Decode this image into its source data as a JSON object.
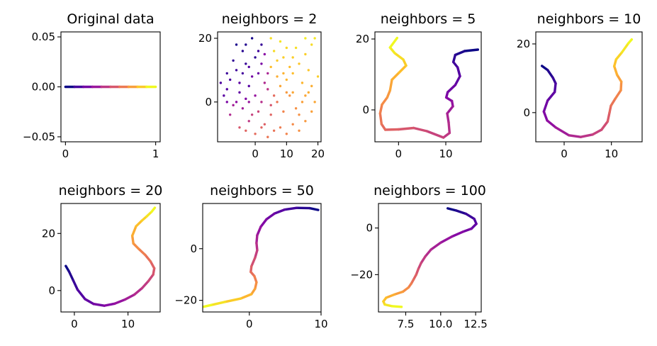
{
  "chart_data": [
    {
      "type": "line",
      "title": "Original data",
      "colormap": "plasma",
      "xlim": [
        -0.05,
        1.05
      ],
      "ylim": [
        -0.055,
        0.055
      ],
      "xticks": [
        0,
        1
      ],
      "xtick_labels": [
        "0",
        "1"
      ],
      "yticks": [
        -0.05,
        0,
        0.05
      ],
      "ytick_labels": [
        "−0.05",
        "0.00",
        "0.05"
      ],
      "x": [
        0,
        0.1,
        0.2,
        0.3,
        0.4,
        0.5,
        0.6,
        0.7,
        0.8,
        0.9,
        1.0
      ],
      "y": [
        0,
        0,
        0,
        0,
        0,
        0,
        0,
        0,
        0,
        0,
        0
      ]
    },
    {
      "type": "scatter",
      "title": "neighbors = 2",
      "colormap": "plasma",
      "xlim": [
        -12,
        21
      ],
      "ylim": [
        -12.5,
        22
      ],
      "xticks": [
        0,
        10,
        20
      ],
      "xtick_labels": [
        "0",
        "10",
        "20"
      ],
      "yticks": [
        0,
        20
      ],
      "ytick_labels": [
        "0",
        "20"
      ],
      "points": [
        [
          -4,
          16,
          0.05
        ],
        [
          -1,
          20,
          0.02
        ],
        [
          -6,
          10,
          0.1
        ],
        [
          -3,
          12,
          0.08
        ],
        [
          -8,
          7,
          0.12
        ],
        [
          -2,
          5,
          0.15
        ],
        [
          0,
          14,
          0.06
        ],
        [
          -5,
          3,
          0.18
        ],
        [
          -9,
          4,
          0.14
        ],
        [
          1,
          9,
          0.2
        ],
        [
          -7,
          13,
          0.07
        ],
        [
          -3,
          18,
          0.04
        ],
        [
          -10,
          2,
          0.16
        ],
        [
          -1,
          8,
          0.22
        ],
        [
          2,
          12,
          0.24
        ],
        [
          -6,
          0,
          0.3
        ],
        [
          -4,
          -2,
          0.35
        ],
        [
          0,
          2,
          0.32
        ],
        [
          -8,
          -4,
          0.4
        ],
        [
          -2,
          -6,
          0.45
        ],
        [
          1,
          -3,
          0.5
        ],
        [
          -5,
          -8,
          0.55
        ],
        [
          -3,
          -9,
          0.6
        ],
        [
          0,
          -10,
          0.62
        ],
        [
          3,
          -7,
          0.58
        ],
        [
          2,
          0,
          0.42
        ],
        [
          4,
          4,
          0.44
        ],
        [
          -9,
          9,
          0.09
        ],
        [
          -11,
          6,
          0.13
        ],
        [
          -2,
          0,
          0.33
        ],
        [
          5,
          -4,
          0.6
        ],
        [
          6,
          -9,
          0.65
        ],
        [
          4,
          -11,
          0.66
        ],
        [
          8,
          -8,
          0.68
        ],
        [
          10,
          -10,
          0.7
        ],
        [
          12,
          -7,
          0.72
        ],
        [
          14,
          -9,
          0.74
        ],
        [
          16,
          -6,
          0.76
        ],
        [
          18,
          -3,
          0.78
        ],
        [
          19,
          0,
          0.8
        ],
        [
          17,
          3,
          0.82
        ],
        [
          15,
          0,
          0.78
        ],
        [
          13,
          -2,
          0.74
        ],
        [
          11,
          2,
          0.75
        ],
        [
          9,
          -3,
          0.7
        ],
        [
          7,
          0,
          0.66
        ],
        [
          8,
          5,
          0.8
        ],
        [
          10,
          7,
          0.84
        ],
        [
          12,
          9,
          0.86
        ],
        [
          14,
          12,
          0.88
        ],
        [
          16,
          15,
          0.9
        ],
        [
          18,
          18,
          0.93
        ],
        [
          19,
          20,
          0.96
        ],
        [
          17,
          10,
          0.88
        ],
        [
          20,
          8,
          0.9
        ],
        [
          15,
          6,
          0.84
        ],
        [
          12,
          14,
          0.9
        ],
        [
          10,
          17,
          0.92
        ],
        [
          8,
          19,
          0.95
        ],
        [
          6,
          16,
          0.93
        ],
        [
          5,
          11,
          0.86
        ],
        [
          7,
          13,
          0.89
        ],
        [
          3,
          15,
          0.28
        ],
        [
          4,
          9,
          0.38
        ],
        [
          6,
          2,
          0.62
        ],
        [
          13,
          17,
          0.94
        ],
        [
          11,
          11,
          0.86
        ],
        [
          9,
          9,
          0.83
        ],
        [
          16,
          20,
          0.97
        ],
        [
          18,
          5,
          0.82
        ],
        [
          -7,
          -1,
          0.36
        ],
        [
          -5,
          6,
          0.17
        ],
        [
          -3,
          1,
          0.26
        ],
        [
          2,
          -8,
          0.6
        ],
        [
          -1,
          -4,
          0.48
        ],
        [
          3,
          6,
          0.4
        ],
        [
          1,
          16,
          0.1
        ],
        [
          -4,
          9,
          0.11
        ],
        [
          14,
          -4,
          0.74
        ],
        [
          10,
          3,
          0.76
        ],
        [
          -6,
          18,
          0.03
        ],
        [
          2,
          18,
          0.08
        ],
        [
          -2,
          11,
          0.14
        ],
        [
          5,
          -1,
          0.55
        ],
        [
          7,
          8,
          0.82
        ],
        [
          9,
          14,
          0.9
        ],
        [
          -9,
          0,
          0.25
        ],
        [
          12,
          3,
          0.8
        ],
        [
          16,
          2,
          0.8
        ],
        [
          5,
          20,
          0.94
        ]
      ]
    },
    {
      "type": "line",
      "title": "neighbors = 5",
      "colormap": "plasma",
      "xlim": [
        -5,
        17.5
      ],
      "ylim": [
        -9,
        22
      ],
      "xticks": [
        0,
        10
      ],
      "xtick_labels": [
        "0",
        "10"
      ],
      "yticks": [
        0,
        20
      ],
      "ytick_labels": [
        "0",
        "20"
      ],
      "x": [
        16.8,
        14,
        12,
        11.6,
        12.5,
        13,
        12,
        10.4,
        10.1,
        11.3,
        11.5,
        10.3,
        10.6,
        10.8,
        9.5,
        6,
        3.2,
        0,
        -2.8,
        -3.6,
        -3.9,
        -3.5,
        -2.4,
        -1.8,
        -1.4,
        0.1,
        1.6,
        1.0,
        -0.8,
        -1.8,
        -0.3
      ],
      "y": [
        17,
        16.6,
        15.5,
        13.5,
        12.0,
        9.5,
        7.0,
        5.0,
        3.5,
        2.5,
        1.0,
        -1.0,
        -3.5,
        -6.5,
        -7.8,
        -6.0,
        -5.1,
        -5.5,
        -5.6,
        -4.0,
        -1.0,
        1.5,
        3.5,
        5.5,
        8.5,
        10.5,
        12.5,
        14.2,
        16.0,
        17.6,
        20.3
      ]
    },
    {
      "type": "line",
      "title": "neighbors = 10",
      "colormap": "plasma",
      "xlim": [
        -6,
        16.5
      ],
      "ylim": [
        -8.5,
        23.5
      ],
      "xticks": [
        0,
        10
      ],
      "xtick_labels": [
        "0",
        "10"
      ],
      "yticks": [
        0,
        20
      ],
      "ytick_labels": [
        "0",
        "20"
      ],
      "x": [
        -4.7,
        -3.5,
        -2.4,
        -1.8,
        -2.0,
        -3.5,
        -4.3,
        -3.6,
        -1.8,
        1.0,
        3.5,
        6.0,
        7.9,
        9.2,
        9.6,
        9.9,
        10.8,
        12.0,
        12.1,
        11.2,
        10.6,
        11.0,
        12.2,
        13.6,
        14.3
      ],
      "y": [
        13.6,
        12.4,
        10.2,
        8.5,
        6.0,
        3.5,
        0.3,
        -2.3,
        -4.3,
        -6.6,
        -7.1,
        -6.4,
        -5.0,
        -2.6,
        0.0,
        2.0,
        4.0,
        6.5,
        9.0,
        11.0,
        13.5,
        15.5,
        17.5,
        20.2,
        21.3
      ]
    },
    {
      "type": "line",
      "title": "neighbors = 20",
      "colormap": "plasma",
      "xlim": [
        -2.5,
        16
      ],
      "ylim": [
        -7.5,
        30.5
      ],
      "xticks": [
        0,
        10
      ],
      "xtick_labels": [
        "0",
        "10"
      ],
      "yticks": [
        0,
        20
      ],
      "ytick_labels": [
        "0",
        "20"
      ],
      "x": [
        -1.6,
        -1.0,
        -0.2,
        0.6,
        2.0,
        3.6,
        5.6,
        7.5,
        9.5,
        11.2,
        12.6,
        13.8,
        14.7,
        14.9,
        14.2,
        13.2,
        12.0,
        11.0,
        10.8,
        11.5,
        12.6,
        13.5,
        14.4,
        15.0
      ],
      "y": [
        8.6,
        6.7,
        3.5,
        0.3,
        -3.0,
        -4.7,
        -5.3,
        -4.6,
        -3.1,
        -1.4,
        0.8,
        3.3,
        5.6,
        7.8,
        10.2,
        12.5,
        14.6,
        16.5,
        19.2,
        22.5,
        24.5,
        26.0,
        27.6,
        29.0
      ]
    },
    {
      "type": "line",
      "title": "neighbors = 50",
      "colormap": "plasma",
      "xlim": [
        -6.5,
        10
      ],
      "ylim": [
        -24.5,
        17.5
      ],
      "xticks": [
        0,
        10
      ],
      "xtick_labels": [
        "0",
        "10"
      ],
      "yticks": [
        -20,
        0
      ],
      "ytick_labels": [
        "−20",
        "0"
      ],
      "x": [
        9.6,
        8.4,
        6.6,
        4.9,
        3.5,
        2.4,
        1.6,
        1.1,
        1.0,
        1.1,
        0.8,
        0.3,
        0.2,
        0.7,
        1.0,
        0.8,
        0.3,
        -1.2,
        -3.4,
        -5.3,
        -6.4
      ],
      "y": [
        15.0,
        15.7,
        15.8,
        15.1,
        13.6,
        11.4,
        8.5,
        5.2,
        2.2,
        -0.6,
        -3.5,
        -6.8,
        -9.0,
        -10.6,
        -13.0,
        -15.5,
        -17.6,
        -19.3,
        -20.6,
        -21.8,
        -22.5
      ]
    },
    {
      "type": "line",
      "title": "neighbors = 100",
      "colormap": "plasma",
      "xlim": [
        5.55,
        12.9
      ],
      "ylim": [
        -36,
        10.5
      ],
      "xticks": [
        7.5,
        10.0,
        12.5
      ],
      "xtick_labels": [
        "7.5",
        "10.0",
        "12.5"
      ],
      "yticks": [
        -20,
        0
      ],
      "ytick_labels": [
        "−20",
        "0"
      ],
      "x": [
        10.5,
        11.1,
        11.8,
        12.4,
        12.55,
        12.2,
        11.6,
        10.8,
        10.0,
        9.3,
        8.9,
        8.6,
        8.4,
        8.25,
        8.05,
        7.9,
        7.7,
        7.3,
        6.7,
        6.1,
        5.9,
        6.0,
        6.5,
        7.2
      ],
      "y": [
        8.4,
        7.5,
        6.1,
        3.9,
        1.8,
        -0.3,
        -1.6,
        -3.7,
        -6.3,
        -9.3,
        -12.2,
        -15.0,
        -17.6,
        -20.0,
        -22.2,
        -23.8,
        -25.5,
        -27.3,
        -28.5,
        -29.9,
        -31.5,
        -32.8,
        -33.5,
        -33.8
      ]
    }
  ]
}
